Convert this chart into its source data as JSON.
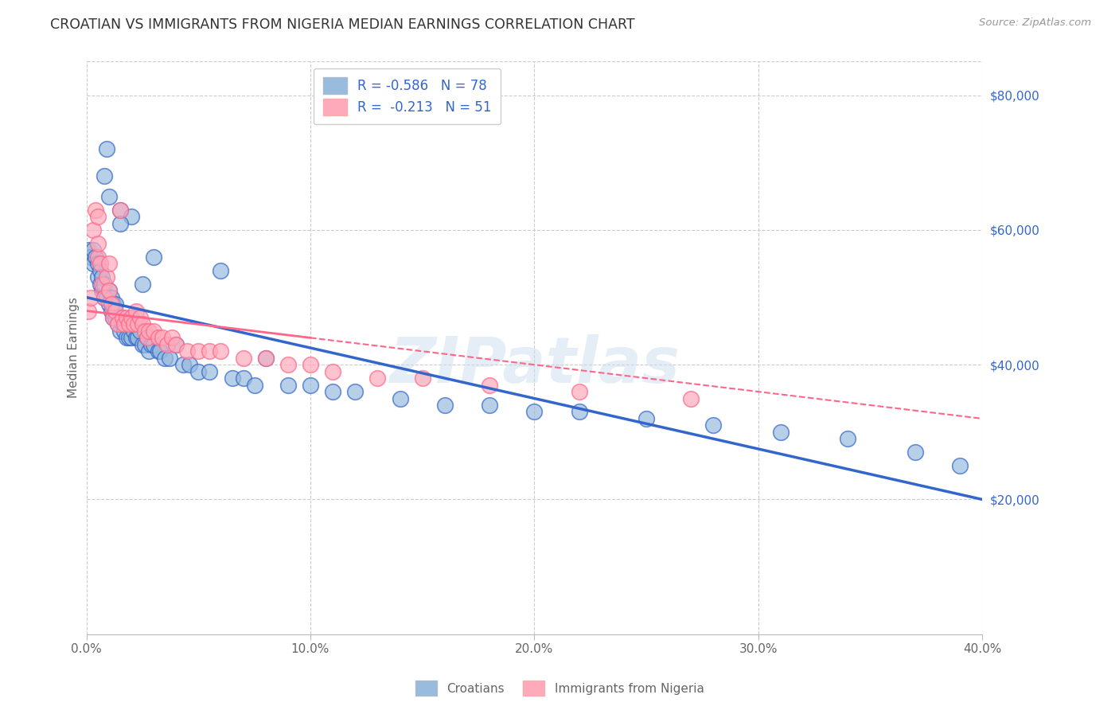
{
  "title": "CROATIAN VS IMMIGRANTS FROM NIGERIA MEDIAN EARNINGS CORRELATION CHART",
  "source": "Source: ZipAtlas.com",
  "ylabel": "Median Earnings",
  "right_yticks": [
    "$80,000",
    "$60,000",
    "$40,000",
    "$20,000"
  ],
  "right_ytick_vals": [
    80000,
    60000,
    40000,
    20000
  ],
  "legend_label1": "Croatians",
  "legend_label2": "Immigrants from Nigeria",
  "color_blue": "#99BBDD",
  "color_pink": "#FFAABB",
  "color_blue_line": "#3366CC",
  "color_pink_line": "#FF6688",
  "watermark": "ZIPatlas",
  "croatian_x": [
    0.001,
    0.002,
    0.003,
    0.003,
    0.004,
    0.005,
    0.005,
    0.006,
    0.006,
    0.007,
    0.007,
    0.008,
    0.008,
    0.009,
    0.01,
    0.01,
    0.011,
    0.011,
    0.012,
    0.012,
    0.013,
    0.013,
    0.014,
    0.015,
    0.015,
    0.016,
    0.017,
    0.018,
    0.019,
    0.02,
    0.02,
    0.021,
    0.022,
    0.023,
    0.024,
    0.025,
    0.026,
    0.027,
    0.028,
    0.029,
    0.03,
    0.032,
    0.033,
    0.035,
    0.037,
    0.04,
    0.043,
    0.046,
    0.05,
    0.055,
    0.06,
    0.065,
    0.07,
    0.075,
    0.08,
    0.09,
    0.1,
    0.11,
    0.12,
    0.14,
    0.16,
    0.18,
    0.2,
    0.22,
    0.25,
    0.28,
    0.31,
    0.34,
    0.37,
    0.39,
    0.008,
    0.009,
    0.01,
    0.015,
    0.02,
    0.025,
    0.015,
    0.03
  ],
  "croatian_y": [
    57000,
    56000,
    55000,
    57000,
    56000,
    53000,
    55000,
    52000,
    54000,
    51000,
    53000,
    50000,
    52000,
    50000,
    49000,
    51000,
    48000,
    50000,
    47000,
    49000,
    47000,
    49000,
    46000,
    45000,
    47000,
    46000,
    45000,
    44000,
    44000,
    44000,
    47000,
    45000,
    44000,
    44000,
    45000,
    43000,
    43000,
    44000,
    42000,
    43000,
    43000,
    42000,
    42000,
    41000,
    41000,
    43000,
    40000,
    40000,
    39000,
    39000,
    54000,
    38000,
    38000,
    37000,
    41000,
    37000,
    37000,
    36000,
    36000,
    35000,
    34000,
    34000,
    33000,
    33000,
    32000,
    31000,
    30000,
    29000,
    27000,
    25000,
    68000,
    72000,
    65000,
    63000,
    62000,
    52000,
    61000,
    56000
  ],
  "nigeria_x": [
    0.001,
    0.002,
    0.003,
    0.004,
    0.005,
    0.005,
    0.006,
    0.007,
    0.008,
    0.009,
    0.01,
    0.01,
    0.011,
    0.012,
    0.013,
    0.014,
    0.015,
    0.016,
    0.017,
    0.018,
    0.019,
    0.02,
    0.021,
    0.022,
    0.023,
    0.024,
    0.025,
    0.026,
    0.027,
    0.028,
    0.03,
    0.032,
    0.034,
    0.036,
    0.038,
    0.04,
    0.045,
    0.05,
    0.055,
    0.06,
    0.07,
    0.08,
    0.09,
    0.1,
    0.11,
    0.13,
    0.15,
    0.18,
    0.22,
    0.27,
    0.005
  ],
  "nigeria_y": [
    48000,
    50000,
    60000,
    63000,
    56000,
    58000,
    55000,
    52000,
    50000,
    53000,
    51000,
    55000,
    49000,
    47000,
    48000,
    46000,
    63000,
    47000,
    46000,
    47000,
    46000,
    47000,
    46000,
    48000,
    46000,
    47000,
    46000,
    45000,
    44000,
    45000,
    45000,
    44000,
    44000,
    43000,
    44000,
    43000,
    42000,
    42000,
    42000,
    42000,
    41000,
    41000,
    40000,
    40000,
    39000,
    38000,
    38000,
    37000,
    36000,
    35000,
    62000
  ],
  "xmin": 0.0,
  "xmax": 0.4,
  "ymin": 0,
  "ymax": 85000,
  "xtick_vals": [
    0.0,
    0.1,
    0.2,
    0.3,
    0.4
  ],
  "xtick_labels": [
    "0.0%",
    "10.0%",
    "20.0%",
    "30.0%",
    "40.0%"
  ]
}
